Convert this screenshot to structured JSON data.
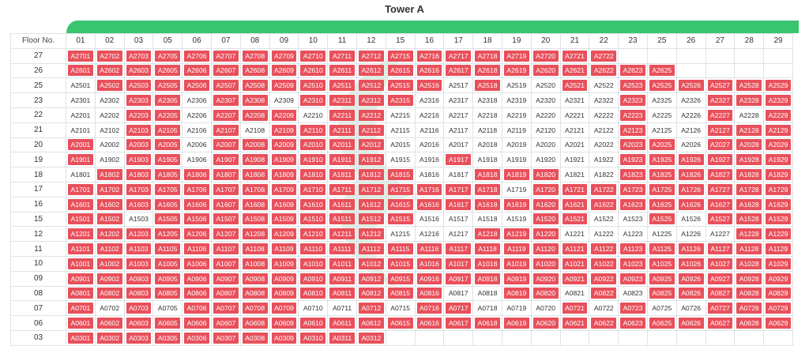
{
  "title": "Tower A",
  "header": {
    "corner": "Floor No.",
    "columns": [
      "01",
      "02",
      "03",
      "05",
      "06",
      "07",
      "08",
      "09",
      "10",
      "11",
      "12",
      "15",
      "16",
      "17",
      "18",
      "19",
      "20",
      "21",
      "22",
      "23",
      "25",
      "26",
      "27",
      "28",
      "29"
    ]
  },
  "colors": {
    "sold": "#e8505b",
    "available": "#ffffff",
    "bar": "#39c46f"
  },
  "floors": [
    {
      "floor": "27",
      "units": [
        1,
        1,
        1,
        1,
        1,
        1,
        1,
        1,
        1,
        1,
        1,
        1,
        1,
        1,
        1,
        1,
        1,
        1,
        1,
        null,
        null,
        null,
        null,
        null,
        null
      ]
    },
    {
      "floor": "26",
      "units": [
        1,
        1,
        1,
        1,
        1,
        1,
        1,
        1,
        1,
        1,
        1,
        1,
        1,
        1,
        1,
        1,
        1,
        1,
        1,
        1,
        1,
        null,
        null,
        null,
        null
      ]
    },
    {
      "floor": "25",
      "units": [
        0,
        1,
        1,
        1,
        1,
        1,
        1,
        1,
        1,
        1,
        1,
        1,
        1,
        0,
        1,
        0,
        0,
        1,
        0,
        1,
        1,
        1,
        1,
        1,
        1
      ]
    },
    {
      "floor": "23",
      "units": [
        0,
        0,
        1,
        1,
        0,
        1,
        1,
        0,
        1,
        1,
        1,
        1,
        0,
        0,
        0,
        0,
        0,
        0,
        0,
        1,
        0,
        0,
        1,
        1,
        1
      ]
    },
    {
      "floor": "22",
      "units": [
        0,
        0,
        1,
        1,
        0,
        1,
        1,
        1,
        0,
        1,
        1,
        0,
        0,
        0,
        0,
        0,
        0,
        0,
        0,
        1,
        0,
        0,
        1,
        0,
        1
      ]
    },
    {
      "floor": "21",
      "units": [
        0,
        0,
        1,
        1,
        0,
        1,
        0,
        1,
        1,
        1,
        1,
        0,
        0,
        0,
        0,
        0,
        0,
        0,
        0,
        1,
        0,
        0,
        1,
        1,
        1
      ]
    },
    {
      "floor": "20",
      "units": [
        1,
        0,
        1,
        1,
        0,
        1,
        1,
        1,
        1,
        1,
        1,
        0,
        0,
        0,
        0,
        0,
        0,
        0,
        0,
        1,
        1,
        0,
        1,
        1,
        1
      ]
    },
    {
      "floor": "19",
      "units": [
        1,
        0,
        1,
        1,
        0,
        1,
        1,
        1,
        1,
        1,
        1,
        0,
        0,
        1,
        0,
        0,
        0,
        0,
        0,
        1,
        1,
        1,
        1,
        1,
        1
      ]
    },
    {
      "floor": "18",
      "units": [
        0,
        1,
        1,
        1,
        1,
        1,
        1,
        1,
        1,
        1,
        1,
        1,
        0,
        0,
        1,
        1,
        1,
        0,
        0,
        1,
        1,
        1,
        1,
        1,
        1
      ]
    },
    {
      "floor": "17",
      "units": [
        1,
        1,
        1,
        1,
        1,
        1,
        1,
        1,
        1,
        1,
        1,
        1,
        1,
        1,
        1,
        0,
        1,
        1,
        1,
        1,
        1,
        1,
        1,
        1,
        1
      ]
    },
    {
      "floor": "16",
      "units": [
        1,
        1,
        1,
        1,
        1,
        1,
        1,
        1,
        1,
        1,
        1,
        1,
        1,
        1,
        1,
        1,
        1,
        1,
        1,
        1,
        1,
        1,
        1,
        1,
        1
      ]
    },
    {
      "floor": "15",
      "units": [
        1,
        1,
        0,
        1,
        1,
        1,
        1,
        1,
        1,
        1,
        1,
        1,
        0,
        0,
        0,
        0,
        1,
        1,
        0,
        0,
        1,
        0,
        1,
        1,
        1
      ]
    },
    {
      "floor": "12",
      "units": [
        1,
        1,
        1,
        1,
        1,
        1,
        1,
        1,
        1,
        1,
        1,
        0,
        0,
        0,
        1,
        1,
        1,
        0,
        0,
        0,
        0,
        0,
        0,
        1,
        1
      ]
    },
    {
      "floor": "11",
      "units": [
        1,
        1,
        1,
        1,
        1,
        1,
        1,
        1,
        1,
        1,
        1,
        1,
        1,
        1,
        1,
        1,
        1,
        1,
        1,
        1,
        1,
        1,
        1,
        1,
        1
      ]
    },
    {
      "floor": "10",
      "units": [
        1,
        1,
        1,
        1,
        1,
        1,
        1,
        1,
        1,
        1,
        1,
        1,
        1,
        1,
        1,
        1,
        1,
        1,
        1,
        1,
        1,
        1,
        1,
        1,
        1
      ]
    },
    {
      "floor": "09",
      "units": [
        1,
        1,
        1,
        1,
        1,
        1,
        1,
        1,
        1,
        1,
        1,
        1,
        1,
        1,
        1,
        1,
        1,
        1,
        1,
        1,
        1,
        1,
        1,
        1,
        1
      ]
    },
    {
      "floor": "08",
      "units": [
        1,
        1,
        1,
        1,
        1,
        1,
        1,
        1,
        1,
        1,
        1,
        1,
        1,
        0,
        0,
        1,
        1,
        0,
        1,
        0,
        1,
        1,
        1,
        1,
        1
      ]
    },
    {
      "floor": "07",
      "units": [
        1,
        0,
        1,
        0,
        1,
        1,
        1,
        1,
        0,
        0,
        1,
        0,
        1,
        1,
        0,
        0,
        0,
        1,
        0,
        1,
        0,
        0,
        1,
        1,
        1
      ]
    },
    {
      "floor": "06",
      "units": [
        1,
        1,
        1,
        1,
        1,
        1,
        1,
        1,
        1,
        1,
        1,
        1,
        1,
        1,
        1,
        1,
        1,
        1,
        1,
        1,
        1,
        1,
        1,
        1,
        1
      ]
    },
    {
      "floor": "03",
      "units": [
        1,
        1,
        1,
        1,
        1,
        1,
        1,
        1,
        1,
        1,
        1,
        null,
        null,
        null,
        null,
        null,
        null,
        null,
        null,
        null,
        null,
        null,
        null,
        null,
        null
      ]
    }
  ]
}
